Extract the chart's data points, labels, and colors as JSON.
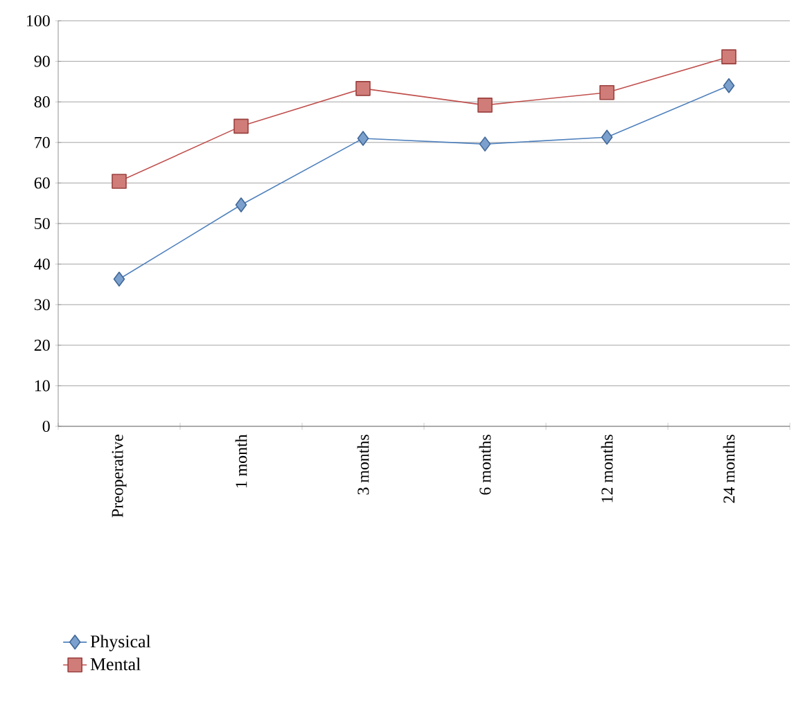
{
  "chart_data": {
    "type": "line",
    "categories": [
      "Preoperative",
      "1 month",
      "3 months",
      "6 months",
      "12 months",
      "24 months"
    ],
    "series": [
      {
        "name": "Physical",
        "color": "#4f81bd",
        "marker": "diamond",
        "values": [
          36.3,
          54.6,
          71,
          69.6,
          71.3,
          84
        ]
      },
      {
        "name": "Mental",
        "color": "#c0504d",
        "marker": "square",
        "values": [
          60.4,
          74,
          83.3,
          79.2,
          82.3,
          91.1
        ]
      }
    ],
    "ylim": [
      0,
      100
    ],
    "yticks": [
      0,
      10,
      20,
      30,
      40,
      50,
      60,
      70,
      80,
      90,
      100
    ],
    "grid": "y",
    "legend": "bottom left"
  }
}
